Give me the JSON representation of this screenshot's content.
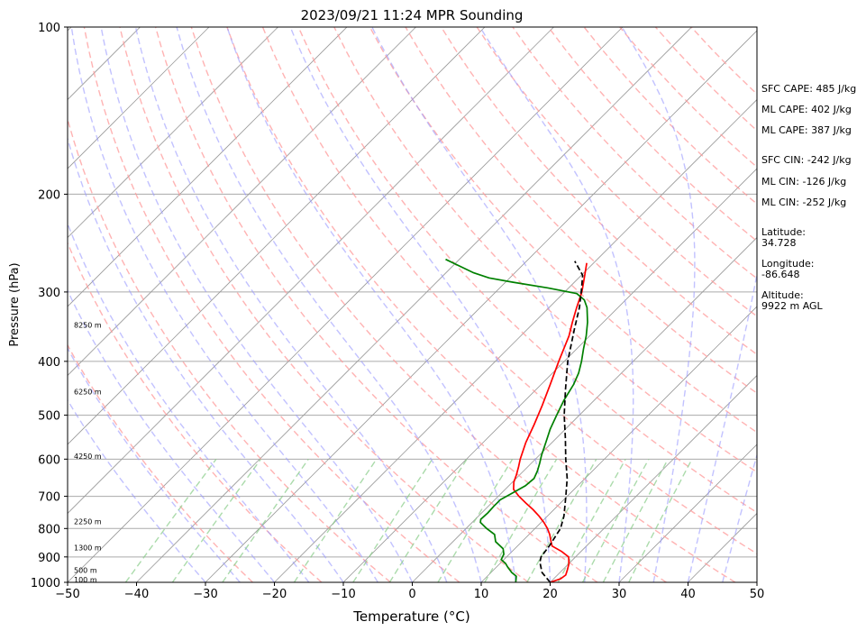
{
  "chart_data": {
    "type": "line",
    "title": "2023/09/21 11:24 MPR Sounding",
    "xlabel": "Temperature (°C)",
    "ylabel": "Pressure (hPa)",
    "xlim": [
      -50,
      50
    ],
    "ylim": [
      1000,
      100
    ],
    "y_scale": "log",
    "skew": "45 degrees (skew-T log-P)",
    "x_ticks": [
      "−50",
      "−40",
      "−30",
      "−20",
      "−10",
      "0",
      "10",
      "20",
      "30",
      "40",
      "50"
    ],
    "y_ticks": [
      "100",
      "200",
      "300",
      "400",
      "500",
      "600",
      "700",
      "800",
      "900",
      "1000"
    ],
    "y_tick_values": [
      100,
      200,
      300,
      400,
      500,
      600,
      700,
      800,
      900,
      1000
    ],
    "height_labels": [
      {
        "text": "100 m",
        "p": 993
      },
      {
        "text": "500 m",
        "p": 955
      },
      {
        "text": "1300 m",
        "p": 870
      },
      {
        "text": "2250 m",
        "p": 780
      },
      {
        "text": "4250 m",
        "p": 595
      },
      {
        "text": "6250 m",
        "p": 455
      },
      {
        "text": "8250 m",
        "p": 345
      }
    ],
    "series": [
      {
        "color": "#ff0000",
        "points": [
          [
            1000,
            20.0
          ],
          [
            985,
            21.0
          ],
          [
            970,
            21.2
          ],
          [
            950,
            20.7
          ],
          [
            925,
            20.0
          ],
          [
            900,
            19.0
          ],
          [
            880,
            17.2
          ],
          [
            860,
            15.0
          ],
          [
            840,
            14.0
          ],
          [
            820,
            13.0
          ],
          [
            800,
            11.8
          ],
          [
            780,
            10.4
          ],
          [
            760,
            8.8
          ],
          [
            740,
            7.0
          ],
          [
            720,
            5.0
          ],
          [
            700,
            3.0
          ],
          [
            680,
            1.2
          ],
          [
            660,
            0.2
          ],
          [
            640,
            -0.5
          ],
          [
            620,
            -1.3
          ],
          [
            600,
            -2.2
          ],
          [
            560,
            -3.8
          ],
          [
            520,
            -5.2
          ],
          [
            480,
            -6.8
          ],
          [
            440,
            -8.7
          ],
          [
            400,
            -10.8
          ],
          [
            360,
            -13.0
          ],
          [
            340,
            -14.5
          ],
          [
            320,
            -16.0
          ],
          [
            300,
            -17.5
          ],
          [
            280,
            -19.5
          ],
          [
            266,
            -21.0
          ]
        ]
      },
      {
        "color": "#008000",
        "points": [
          [
            1000,
            15.0
          ],
          [
            990,
            14.7
          ],
          [
            975,
            14.2
          ],
          [
            960,
            13.0
          ],
          [
            940,
            11.7
          ],
          [
            925,
            10.8
          ],
          [
            910,
            9.6
          ],
          [
            890,
            9.2
          ],
          [
            870,
            8.3
          ],
          [
            845,
            6.2
          ],
          [
            820,
            5.0
          ],
          [
            800,
            3.0
          ],
          [
            780,
            1.2
          ],
          [
            770,
            0.8
          ],
          [
            750,
            0.9
          ],
          [
            730,
            0.8
          ],
          [
            710,
            0.8
          ],
          [
            690,
            1.6
          ],
          [
            670,
            2.4
          ],
          [
            650,
            2.6
          ],
          [
            630,
            2.0
          ],
          [
            610,
            1.2
          ],
          [
            590,
            0.3
          ],
          [
            560,
            -0.9
          ],
          [
            530,
            -2.2
          ],
          [
            500,
            -3.3
          ],
          [
            470,
            -4.4
          ],
          [
            440,
            -5.3
          ],
          [
            420,
            -6.2
          ],
          [
            400,
            -7.5
          ],
          [
            380,
            -9.0
          ],
          [
            360,
            -10.5
          ],
          [
            340,
            -12.3
          ],
          [
            320,
            -14.5
          ],
          [
            310,
            -16.0
          ],
          [
            302,
            -18.0
          ],
          [
            295,
            -23.0
          ],
          [
            288,
            -29.0
          ],
          [
            283,
            -33.0
          ],
          [
            277,
            -36.0
          ],
          [
            262,
            -42.0
          ]
        ]
      },
      {
        "color": "#000000",
        "dash": "6,3",
        "points": [
          [
            1000,
            20.0
          ],
          [
            960,
            17.4
          ],
          [
            920,
            15.6
          ],
          [
            900,
            15.0
          ],
          [
            860,
            14.6
          ],
          [
            800,
            13.7
          ],
          [
            760,
            12.4
          ],
          [
            700,
            9.8
          ],
          [
            650,
            7.4
          ],
          [
            600,
            4.4
          ],
          [
            550,
            1.3
          ],
          [
            500,
            -2.2
          ],
          [
            450,
            -5.7
          ],
          [
            400,
            -9.5
          ],
          [
            350,
            -13.2
          ],
          [
            320,
            -15.6
          ],
          [
            300,
            -17.6
          ],
          [
            280,
            -19.8
          ],
          [
            264,
            -23.0
          ]
        ]
      }
    ]
  },
  "annotations": {
    "sfc_cape": "SFC CAPE: 485 J/kg",
    "ml_cape_1": "ML CAPE: 402 J/kg",
    "ml_cape_2": "ML CAPE: 387 J/kg",
    "sfc_cin": "SFC CIN: -242 J/kg",
    "ml_cin_1": "ML CIN: -126 J/kg",
    "ml_cin_2": "ML CIN: -252 J/kg",
    "latitude": "Latitude:\n34.728",
    "longitude": "Longitude:\n-86.648",
    "altitude": "Altitude:\n9922 m AGL"
  },
  "colors": {
    "dry_adiabat": "#ff9999",
    "moist_adiabat": "#9999ff",
    "mixing_ratio": "#88cc88",
    "isotherm": "#999999",
    "isobar": "#aaaaaa"
  }
}
